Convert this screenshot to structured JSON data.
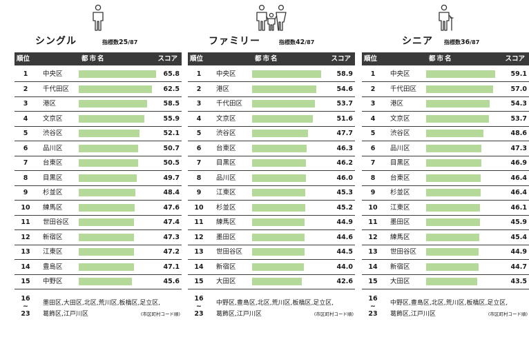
{
  "panels": [
    {
      "title": "シングル",
      "indicator_prefix": "指標数",
      "indicator_count": "25",
      "indicator_total": "/87",
      "icon": "single-person-icon",
      "rows": [
        {
          "rank": "1",
          "name": "中央区",
          "score": "65.8",
          "value": 65.8
        },
        {
          "rank": "2",
          "name": "千代田区",
          "score": "62.5",
          "value": 62.5
        },
        {
          "rank": "3",
          "name": "港区",
          "score": "58.5",
          "value": 58.5
        },
        {
          "rank": "4",
          "name": "文京区",
          "score": "55.9",
          "value": 55.9
        },
        {
          "rank": "5",
          "name": "渋谷区",
          "score": "52.1",
          "value": 52.1
        },
        {
          "rank": "6",
          "name": "品川区",
          "score": "50.7",
          "value": 50.7
        },
        {
          "rank": "7",
          "name": "台東区",
          "score": "50.5",
          "value": 50.5
        },
        {
          "rank": "8",
          "name": "目黒区",
          "score": "49.7",
          "value": 49.7
        },
        {
          "rank": "9",
          "name": "杉並区",
          "score": "48.4",
          "value": 48.4
        },
        {
          "rank": "10",
          "name": "練馬区",
          "score": "47.6",
          "value": 47.6
        },
        {
          "rank": "11",
          "name": "世田谷区",
          "score": "47.4",
          "value": 47.4
        },
        {
          "rank": "12",
          "name": "新宿区",
          "score": "47.3",
          "value": 47.3
        },
        {
          "rank": "13",
          "name": "江東区",
          "score": "47.2",
          "value": 47.2
        },
        {
          "rank": "14",
          "name": "豊島区",
          "score": "47.1",
          "value": 47.1
        },
        {
          "rank": "15",
          "name": "中野区",
          "score": "45.6",
          "value": 45.6
        }
      ],
      "tail": {
        "rank_from": "16",
        "rank_sep": "~",
        "rank_to": "23",
        "line1": "墨田区,大田区,北区,荒川区,板橋区,足立区,",
        "line2": "葛飾区,江戸川区",
        "note": "(市区町村コード順)"
      }
    },
    {
      "title": "ファミリー",
      "indicator_prefix": "指標数",
      "indicator_count": "42",
      "indicator_total": "/87",
      "icon": "family-icon",
      "rows": [
        {
          "rank": "1",
          "name": "中央区",
          "score": "58.9",
          "value": 58.9
        },
        {
          "rank": "2",
          "name": "港区",
          "score": "54.6",
          "value": 54.6
        },
        {
          "rank": "3",
          "name": "千代田区",
          "score": "53.7",
          "value": 53.7
        },
        {
          "rank": "4",
          "name": "文京区",
          "score": "51.6",
          "value": 51.6
        },
        {
          "rank": "5",
          "name": "渋谷区",
          "score": "47.7",
          "value": 47.7
        },
        {
          "rank": "6",
          "name": "台東区",
          "score": "46.3",
          "value": 46.3
        },
        {
          "rank": "7",
          "name": "目黒区",
          "score": "46.2",
          "value": 46.2
        },
        {
          "rank": "8",
          "name": "品川区",
          "score": "46.0",
          "value": 46.0
        },
        {
          "rank": "9",
          "name": "江東区",
          "score": "45.3",
          "value": 45.3
        },
        {
          "rank": "10",
          "name": "杉並区",
          "score": "45.2",
          "value": 45.2
        },
        {
          "rank": "11",
          "name": "練馬区",
          "score": "44.9",
          "value": 44.9
        },
        {
          "rank": "12",
          "name": "墨田区",
          "score": "44.6",
          "value": 44.6
        },
        {
          "rank": "13",
          "name": "世田谷区",
          "score": "44.5",
          "value": 44.5
        },
        {
          "rank": "14",
          "name": "新宿区",
          "score": "44.0",
          "value": 44.0
        },
        {
          "rank": "15",
          "name": "大田区",
          "score": "42.6",
          "value": 42.6
        }
      ],
      "tail": {
        "rank_from": "16",
        "rank_sep": "~",
        "rank_to": "23",
        "line1": "中野区,豊島区,北区,荒川区,板橋区,足立区,",
        "line2": "葛飾区,江戸川区",
        "note": "(市区町村コード順)"
      }
    },
    {
      "title": "シニア",
      "indicator_prefix": "指標数",
      "indicator_count": "36",
      "indicator_total": "/87",
      "icon": "senior-with-cane-icon",
      "rows": [
        {
          "rank": "1",
          "name": "中央区",
          "score": "59.1",
          "value": 59.1
        },
        {
          "rank": "2",
          "name": "千代田区",
          "score": "57.0",
          "value": 57.0
        },
        {
          "rank": "3",
          "name": "港区",
          "score": "54.3",
          "value": 54.3
        },
        {
          "rank": "4",
          "name": "文京区",
          "score": "53.7",
          "value": 53.7
        },
        {
          "rank": "5",
          "name": "渋谷区",
          "score": "48.6",
          "value": 48.6
        },
        {
          "rank": "6",
          "name": "品川区",
          "score": "47.3",
          "value": 47.3
        },
        {
          "rank": "7",
          "name": "目黒区",
          "score": "46.9",
          "value": 46.9
        },
        {
          "rank": "8",
          "name": "台東区",
          "score": "46.4",
          "value": 46.4
        },
        {
          "rank": "9",
          "name": "杉並区",
          "score": "46.4",
          "value": 46.4
        },
        {
          "rank": "10",
          "name": "江東区",
          "score": "46.1",
          "value": 46.1
        },
        {
          "rank": "11",
          "name": "墨田区",
          "score": "45.9",
          "value": 45.9
        },
        {
          "rank": "12",
          "name": "練馬区",
          "score": "45.4",
          "value": 45.4
        },
        {
          "rank": "13",
          "name": "世田谷区",
          "score": "44.9",
          "value": 44.9
        },
        {
          "rank": "14",
          "name": "新宿区",
          "score": "44.7",
          "value": 44.7
        },
        {
          "rank": "15",
          "name": "大田区",
          "score": "43.5",
          "value": 43.5
        }
      ],
      "tail": {
        "rank_from": "16",
        "rank_sep": "~",
        "rank_to": "23",
        "line1": "中野区,豊島区,北区,荒川区,板橋区,足立区,",
        "line2": "葛飾区,江戸川区",
        "note": "(市区町村コード順)"
      }
    }
  ],
  "headers": {
    "rank": "順位",
    "city": "都市名",
    "score": "スコア"
  },
  "colors": {
    "bar": "#b4d998",
    "header_bg": "#3a3a3a",
    "rule": "#3a3a3a"
  }
}
